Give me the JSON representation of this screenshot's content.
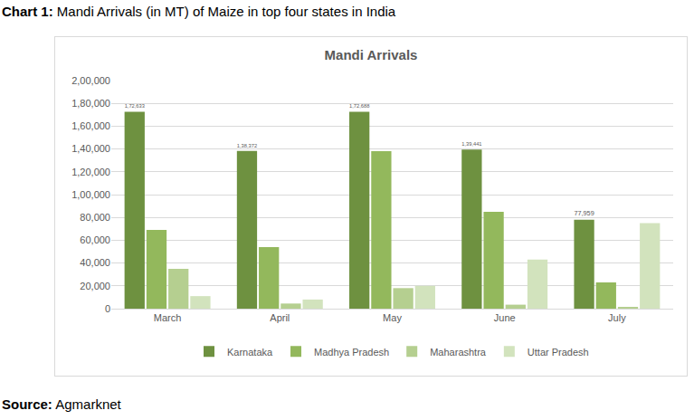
{
  "caption": {
    "label": "Chart 1:",
    "text": "Mandi Arrivals (in MT) of Maize in top four states in India"
  },
  "source": {
    "label": "Source:",
    "text": "Agmarknet"
  },
  "chart_data": {
    "type": "bar",
    "title": "Mandi Arrivals",
    "categories": [
      "March",
      "April",
      "May",
      "June",
      "July"
    ],
    "series": [
      {
        "name": "Karnataka",
        "color": "#6e9140",
        "values": [
          172633,
          138372,
          172688,
          139441,
          77959
        ],
        "data_labels": true,
        "value_labels": [
          "1,72,633",
          "1,38,372",
          "1,72,688",
          "1,39,441",
          "77,959"
        ]
      },
      {
        "name": "Madhya Pradesh",
        "color": "#93b85c",
        "values": [
          69000,
          54000,
          138000,
          85000,
          23000
        ]
      },
      {
        "name": "Maharashtra",
        "color": "#b5cf90",
        "values": [
          35000,
          4500,
          18000,
          3500,
          1000
        ]
      },
      {
        "name": "Uttar Pradesh",
        "color": "#d2e3bd",
        "values": [
          11000,
          8000,
          20000,
          43000,
          75000
        ]
      }
    ],
    "ylim": [
      0,
      200000
    ],
    "yticks": [
      0,
      {
        "value": 20000,
        "label": "20,000"
      },
      {
        "value": 40000,
        "label": "40,000"
      },
      {
        "value": 60000,
        "label": "60,000"
      },
      {
        "value": 80000,
        "label": "80,000"
      },
      {
        "value": 100000,
        "label": "1,00,000"
      },
      {
        "value": 120000,
        "label": "1,20,000"
      },
      {
        "value": 140000,
        "label": "1,40,000"
      },
      {
        "value": 160000,
        "label": "1,60,000"
      },
      {
        "value": 180000,
        "label": "1,80,000"
      },
      {
        "value": 200000,
        "label": "2,00,000"
      }
    ],
    "grid": true,
    "legend": "bottom"
  }
}
